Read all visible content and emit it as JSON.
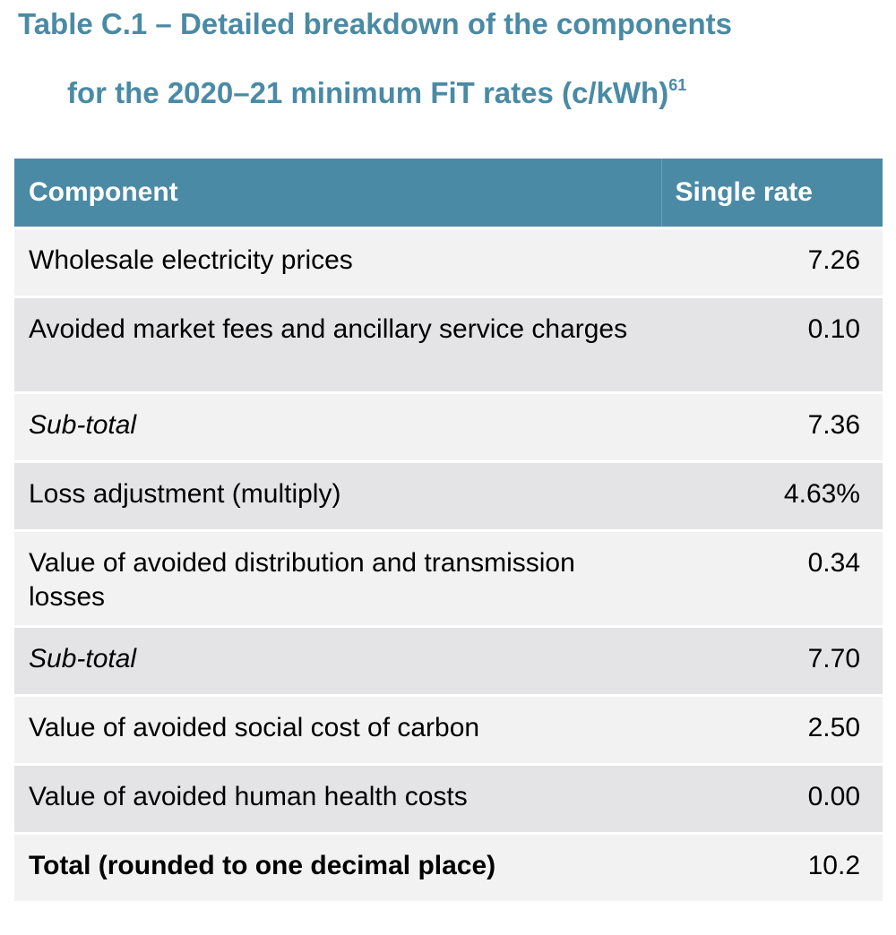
{
  "caption": {
    "line1": "Table C.1 – Detailed breakdown of the components",
    "line2": "for the 2020–21 minimum FiT rates  (c/kWh)",
    "footnote": "61"
  },
  "table": {
    "headers": {
      "component": "Component",
      "rate": "Single rate"
    },
    "rows": [
      {
        "label": "Wholesale electricity prices",
        "value": "7.26"
      },
      {
        "label": "Avoided market fees and ancillary service charges",
        "value": "0.10"
      },
      {
        "label": "Sub-total",
        "value": "7.36"
      },
      {
        "label": "Loss adjustment (multiply)",
        "value": "4.63%"
      },
      {
        "label": "Value of avoided distribution and transmission losses",
        "value": "0.34"
      },
      {
        "label": "Sub-total",
        "value": "7.70"
      },
      {
        "label": "Value of avoided social cost of carbon",
        "value": "2.50"
      },
      {
        "label": "Value of avoided human health costs",
        "value": "0.00"
      },
      {
        "label": "Total (rounded to one decimal place)",
        "value": "10.2"
      }
    ]
  },
  "colors": {
    "accent": "#4a8aa5",
    "row_light": "#f2f2f2",
    "row_dark": "#e4e4e6"
  }
}
